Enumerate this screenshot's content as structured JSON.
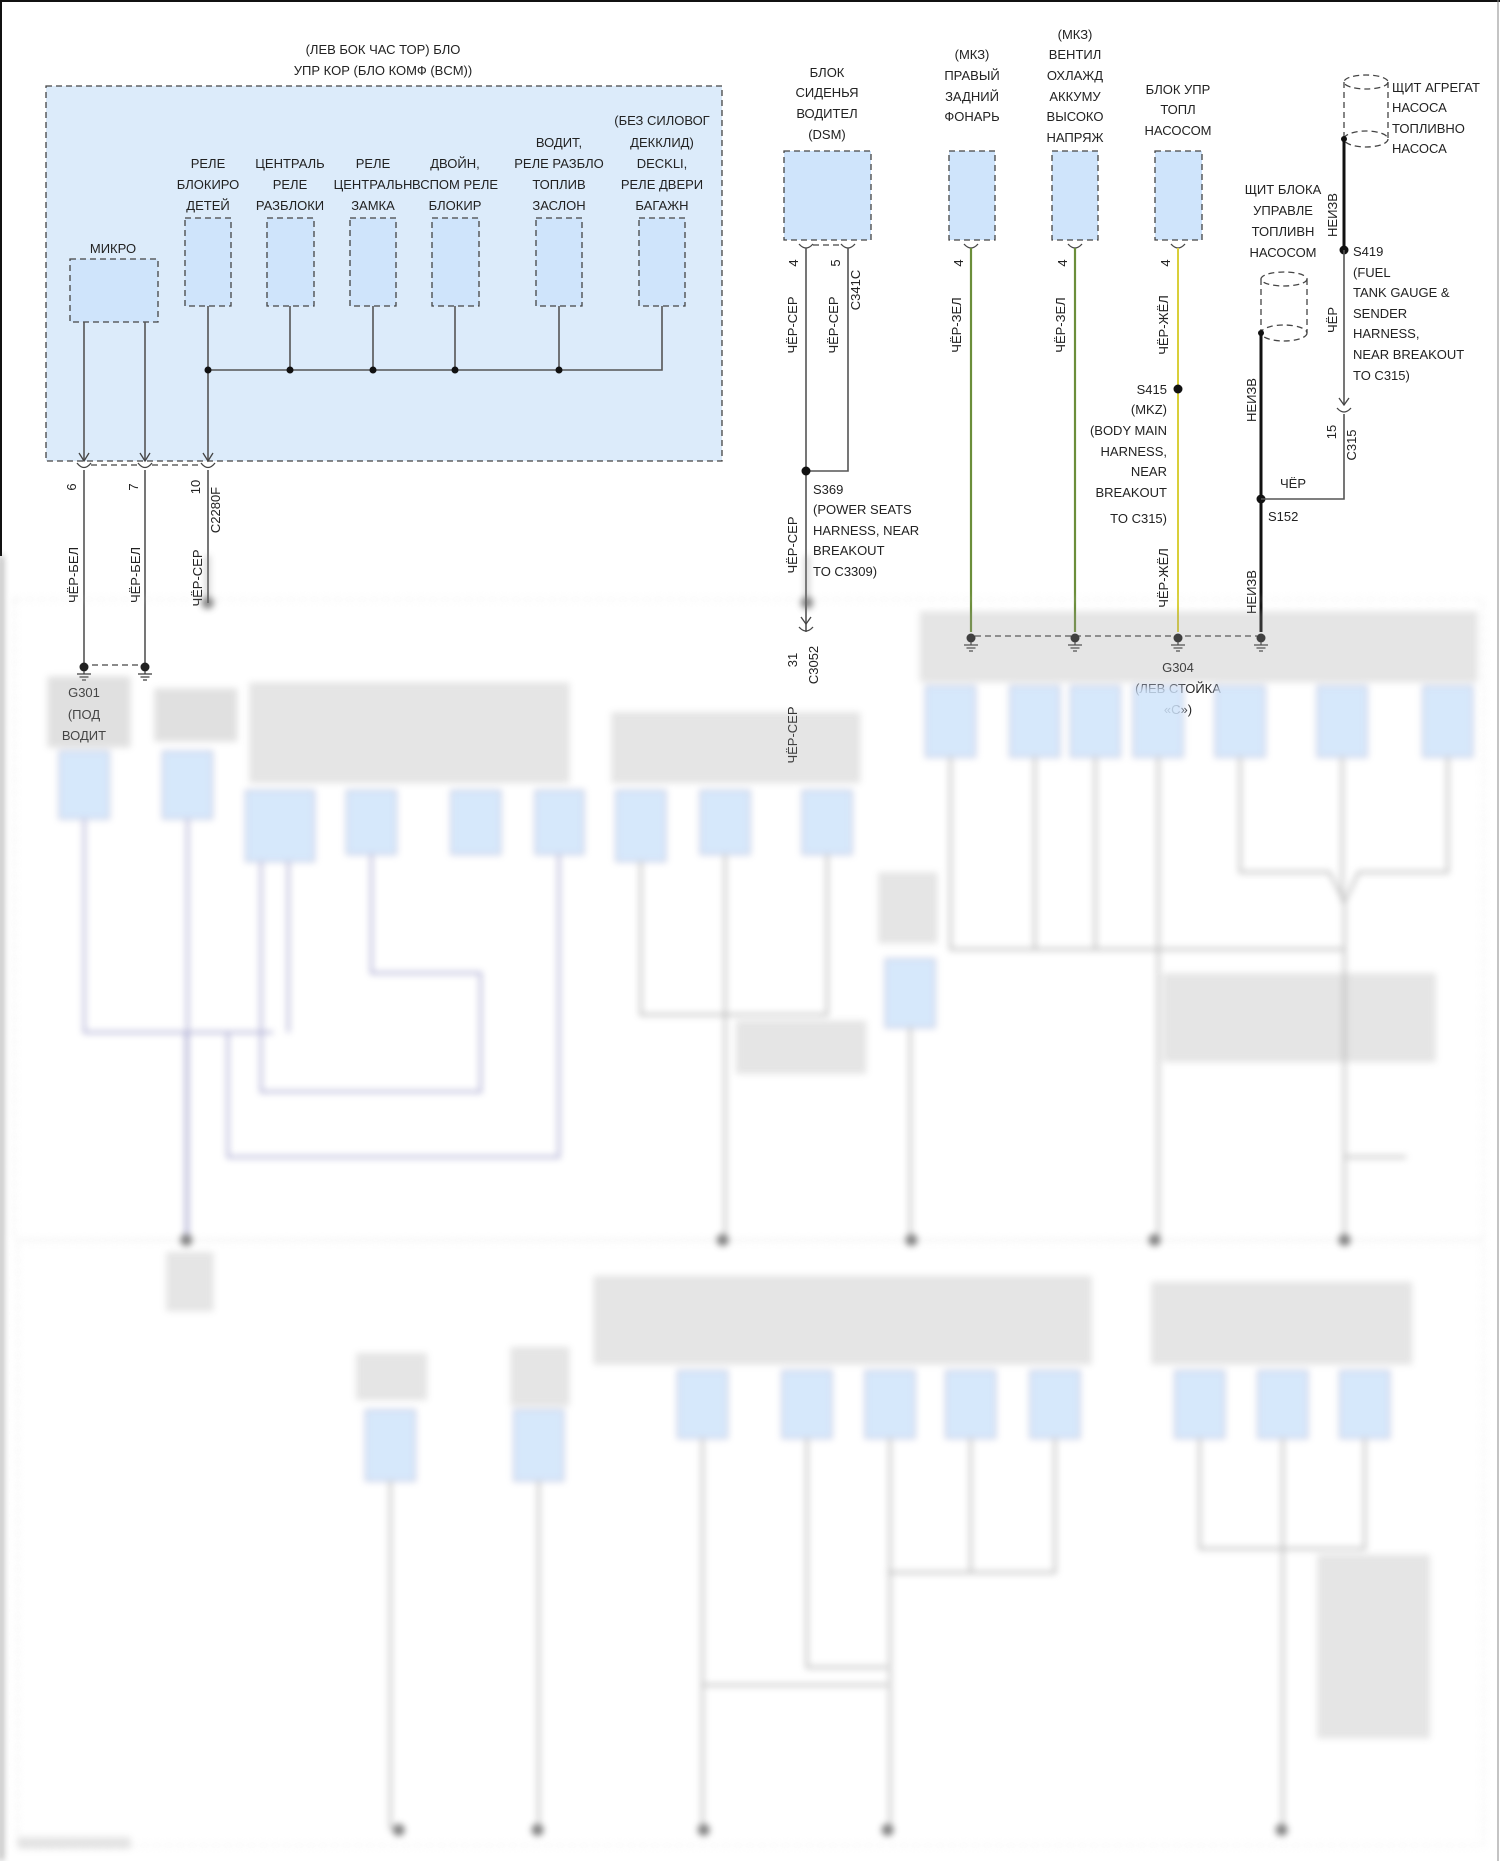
{
  "colors": {
    "module_fill": "#cfe4fb",
    "bcm_fill": "#dcebfa",
    "wire_grey": "#555555",
    "wire_green": "#6b8e3a",
    "wire_yellow": "#d9cf3a",
    "wire_black": "#111111"
  },
  "bcm": {
    "title": [
      "(ЛЕВ БОК ЧАС ТОР) БЛО",
      "УПР КОР (БЛО КОМФ (BCM))"
    ],
    "micro": "МИКРО",
    "relays": [
      [
        "РЕЛЕ",
        "БЛОКИРО",
        "ДЕТЕЙ"
      ],
      [
        "ЦЕНТРАЛЬ",
        "РЕЛЕ",
        "РАЗБЛОКИ"
      ],
      [
        "РЕЛЕ",
        "ЦЕНТРАЛЬН",
        "ЗАМКА"
      ],
      [
        "ДВОЙН,",
        "ВСПОМ РЕЛЕ",
        "БЛОКИР"
      ],
      [
        "ВОДИТ,",
        "РЕЛЕ РАЗБЛО",
        "ТОПЛИВ",
        "ЗАСЛОН"
      ],
      [
        "(БЕЗ СИЛОВОГ",
        "ДЕККЛИД)",
        "DECKLI,",
        "РЕЛЕ ДВЕРИ",
        "БАГАЖН"
      ]
    ],
    "connector": "C2280F",
    "pins": [
      "6",
      "7",
      "10"
    ],
    "wires": [
      "ЧЁР-БЕЛ",
      "ЧЁР-БЕЛ",
      "ЧЁР-СЕР"
    ]
  },
  "g301": [
    "G301",
    "(ПОД",
    "ВОДИТ"
  ],
  "dsm": {
    "title": [
      "БЛОК",
      "СИДЕНЬЯ",
      "ВОДИТЕЛ",
      "(DSM)"
    ],
    "pins": [
      "4",
      "5"
    ],
    "connector": "C341C",
    "wires": [
      "ЧЁР-СЕР",
      "ЧЁР-СЕР",
      "ЧЁР-СЕР",
      "ЧЁР-СЕР"
    ],
    "splice": [
      "S369",
      "(POWER SEATS",
      "HARNESS, NEAR",
      "BREAKOUT",
      "TO C3309)"
    ],
    "connector2": "C3052",
    "pin2": "31"
  },
  "rear_lamp": {
    "title": [
      "(МКЗ)",
      "ПРАВЫЙ",
      "ЗАДНИЙ",
      "ФОНАРЬ"
    ],
    "pin": "4",
    "wire": "ЧЁР-ЗЕЛ"
  },
  "hv_fan": {
    "title": [
      "(МКЗ)",
      "ВЕНТИЛ",
      "ОХЛАЖД",
      "АККУМУ",
      "ВЫСОКО",
      "НАПРЯЖ"
    ],
    "pin": "4",
    "wire": "ЧЁР-ЗЕЛ"
  },
  "fpdm": {
    "title": [
      "БЛОК УПР",
      "ТОПЛ",
      "НАСОСОМ"
    ],
    "pin": "4",
    "wire": "ЧЁР-ЖЁЛ",
    "splice": [
      "S415",
      "(MKZ)",
      "(BODY MAIN",
      "HARNESS,",
      "NEAR",
      "BREAKOUT",
      "TO C315)"
    ]
  },
  "fpdm_shield": {
    "title": [
      "ЩИТ БЛОКА",
      "УПРАВЛЕ",
      "ТОПЛИВН",
      "НАСОСОМ"
    ],
    "wires": [
      "НЕИЗВ",
      "НЕИЗВ"
    ],
    "splice": "S152",
    "wire_black": "ЧЁР"
  },
  "pump_shield": {
    "title": [
      "ЩИТ АГРЕГАТ",
      "НАСОСА",
      "ТОПЛИВНО",
      "НАСОСА"
    ],
    "wire": "НЕИЗВ",
    "wire2": "ЧЁР",
    "splice": [
      "S419",
      "(FUEL",
      "TANK GAUGE &",
      "SENDER",
      "HARNESS,",
      "NEAR BREAKOUT",
      "TO C315)"
    ],
    "pin": "15",
    "connector": "C315"
  },
  "g304": [
    "G304",
    "(ЛЕВ СТОЙКА",
    "«C»)"
  ]
}
